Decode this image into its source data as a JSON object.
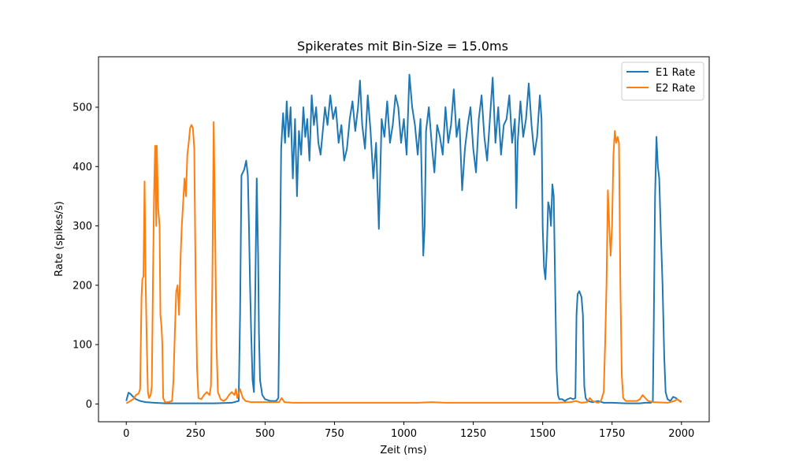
{
  "chart_data": {
    "type": "line",
    "title": "Spikerates mit Bin-Size = 15.0ms",
    "xlabel": "Zeit (ms)",
    "ylabel": "Rate (spikes/s)",
    "xlim": [
      -100,
      2100
    ],
    "ylim": [
      -30,
      585
    ],
    "xticks": [
      0,
      250,
      500,
      750,
      1000,
      1250,
      1500,
      1750,
      2000
    ],
    "yticks": [
      0,
      100,
      200,
      300,
      400,
      500
    ],
    "legend": "top-right",
    "grid": false,
    "series": [
      {
        "name": "E1 Rate",
        "color": "#1f77b4",
        "points": [
          [
            0,
            5
          ],
          [
            8,
            19
          ],
          [
            15,
            17
          ],
          [
            25,
            12
          ],
          [
            35,
            8
          ],
          [
            50,
            5
          ],
          [
            70,
            3
          ],
          [
            100,
            2
          ],
          [
            140,
            1
          ],
          [
            200,
            1
          ],
          [
            260,
            1
          ],
          [
            320,
            1
          ],
          [
            380,
            2
          ],
          [
            405,
            5
          ],
          [
            410,
            150
          ],
          [
            415,
            385
          ],
          [
            425,
            395
          ],
          [
            432,
            410
          ],
          [
            438,
            385
          ],
          [
            442,
            300
          ],
          [
            446,
            200
          ],
          [
            450,
            120
          ],
          [
            455,
            40
          ],
          [
            460,
            20
          ],
          [
            465,
            200
          ],
          [
            470,
            380
          ],
          [
            475,
            250
          ],
          [
            478,
            120
          ],
          [
            482,
            40
          ],
          [
            490,
            15
          ],
          [
            500,
            8
          ],
          [
            520,
            5
          ],
          [
            540,
            5
          ],
          [
            548,
            10
          ],
          [
            555,
            300
          ],
          [
            558,
            430
          ],
          [
            565,
            490
          ],
          [
            572,
            440
          ],
          [
            578,
            510
          ],
          [
            585,
            450
          ],
          [
            592,
            500
          ],
          [
            600,
            380
          ],
          [
            608,
            480
          ],
          [
            615,
            350
          ],
          [
            622,
            460
          ],
          [
            630,
            420
          ],
          [
            638,
            500
          ],
          [
            645,
            450
          ],
          [
            652,
            480
          ],
          [
            660,
            410
          ],
          [
            668,
            520
          ],
          [
            676,
            470
          ],
          [
            684,
            500
          ],
          [
            692,
            440
          ],
          [
            700,
            420
          ],
          [
            708,
            460
          ],
          [
            716,
            500
          ],
          [
            725,
            470
          ],
          [
            735,
            520
          ],
          [
            745,
            480
          ],
          [
            755,
            500
          ],
          [
            765,
            440
          ],
          [
            775,
            470
          ],
          [
            785,
            410
          ],
          [
            795,
            430
          ],
          [
            805,
            480
          ],
          [
            815,
            510
          ],
          [
            825,
            460
          ],
          [
            835,
            500
          ],
          [
            842,
            545
          ],
          [
            850,
            470
          ],
          [
            860,
            430
          ],
          [
            870,
            520
          ],
          [
            880,
            460
          ],
          [
            890,
            380
          ],
          [
            900,
            440
          ],
          [
            910,
            295
          ],
          [
            920,
            480
          ],
          [
            930,
            450
          ],
          [
            940,
            510
          ],
          [
            950,
            440
          ],
          [
            960,
            470
          ],
          [
            970,
            520
          ],
          [
            980,
            500
          ],
          [
            990,
            440
          ],
          [
            1000,
            480
          ],
          [
            1010,
            420
          ],
          [
            1020,
            555
          ],
          [
            1030,
            500
          ],
          [
            1040,
            470
          ],
          [
            1050,
            420
          ],
          [
            1060,
            480
          ],
          [
            1070,
            250
          ],
          [
            1075,
            300
          ],
          [
            1080,
            460
          ],
          [
            1090,
            500
          ],
          [
            1100,
            440
          ],
          [
            1110,
            390
          ],
          [
            1120,
            470
          ],
          [
            1130,
            450
          ],
          [
            1140,
            420
          ],
          [
            1150,
            500
          ],
          [
            1160,
            440
          ],
          [
            1170,
            470
          ],
          [
            1180,
            530
          ],
          [
            1190,
            450
          ],
          [
            1200,
            480
          ],
          [
            1210,
            360
          ],
          [
            1220,
            430
          ],
          [
            1230,
            470
          ],
          [
            1240,
            500
          ],
          [
            1250,
            430
          ],
          [
            1260,
            390
          ],
          [
            1270,
            480
          ],
          [
            1280,
            520
          ],
          [
            1290,
            450
          ],
          [
            1300,
            410
          ],
          [
            1310,
            480
          ],
          [
            1320,
            550
          ],
          [
            1330,
            440
          ],
          [
            1340,
            500
          ],
          [
            1350,
            420
          ],
          [
            1360,
            470
          ],
          [
            1370,
            480
          ],
          [
            1380,
            520
          ],
          [
            1390,
            440
          ],
          [
            1400,
            480
          ],
          [
            1405,
            330
          ],
          [
            1410,
            440
          ],
          [
            1420,
            510
          ],
          [
            1430,
            450
          ],
          [
            1440,
            480
          ],
          [
            1450,
            540
          ],
          [
            1460,
            470
          ],
          [
            1470,
            420
          ],
          [
            1480,
            450
          ],
          [
            1490,
            520
          ],
          [
            1496,
            480
          ],
          [
            1500,
            300
          ],
          [
            1505,
            230
          ],
          [
            1510,
            210
          ],
          [
            1515,
            260
          ],
          [
            1520,
            340
          ],
          [
            1525,
            330
          ],
          [
            1530,
            300
          ],
          [
            1535,
            370
          ],
          [
            1540,
            350
          ],
          [
            1545,
            200
          ],
          [
            1550,
            60
          ],
          [
            1555,
            15
          ],
          [
            1560,
            8
          ],
          [
            1570,
            8
          ],
          [
            1580,
            5
          ],
          [
            1590,
            8
          ],
          [
            1600,
            10
          ],
          [
            1610,
            8
          ],
          [
            1618,
            10
          ],
          [
            1622,
            150
          ],
          [
            1626,
            185
          ],
          [
            1632,
            190
          ],
          [
            1640,
            180
          ],
          [
            1645,
            150
          ],
          [
            1650,
            30
          ],
          [
            1655,
            10
          ],
          [
            1662,
            5
          ],
          [
            1680,
            3
          ],
          [
            1700,
            5
          ],
          [
            1720,
            2
          ],
          [
            1750,
            2
          ],
          [
            1800,
            1
          ],
          [
            1850,
            1
          ],
          [
            1870,
            2
          ],
          [
            1890,
            2
          ],
          [
            1897,
            5
          ],
          [
            1900,
            120
          ],
          [
            1905,
            350
          ],
          [
            1910,
            450
          ],
          [
            1915,
            400
          ],
          [
            1920,
            380
          ],
          [
            1925,
            300
          ],
          [
            1932,
            200
          ],
          [
            1938,
            80
          ],
          [
            1943,
            20
          ],
          [
            1950,
            8
          ],
          [
            1960,
            5
          ],
          [
            1970,
            12
          ],
          [
            1980,
            10
          ],
          [
            1990,
            6
          ],
          [
            2000,
            4
          ]
        ]
      },
      {
        "name": "E2 Rate",
        "color": "#ff7f0e",
        "points": [
          [
            0,
            1
          ],
          [
            15,
            5
          ],
          [
            25,
            8
          ],
          [
            35,
            15
          ],
          [
            45,
            18
          ],
          [
            50,
            25
          ],
          [
            55,
            180
          ],
          [
            58,
            210
          ],
          [
            62,
            215
          ],
          [
            66,
            375
          ],
          [
            70,
            200
          ],
          [
            74,
            100
          ],
          [
            78,
            20
          ],
          [
            82,
            10
          ],
          [
            88,
            15
          ],
          [
            92,
            30
          ],
          [
            96,
            200
          ],
          [
            100,
            350
          ],
          [
            104,
            435
          ],
          [
            108,
            300
          ],
          [
            110,
            435
          ],
          [
            115,
            330
          ],
          [
            120,
            300
          ],
          [
            123,
            150
          ],
          [
            127,
            130
          ],
          [
            130,
            100
          ],
          [
            133,
            10
          ],
          [
            140,
            3
          ],
          [
            150,
            3
          ],
          [
            165,
            5
          ],
          [
            170,
            40
          ],
          [
            175,
            120
          ],
          [
            180,
            190
          ],
          [
            185,
            200
          ],
          [
            190,
            150
          ],
          [
            196,
            250
          ],
          [
            200,
            300
          ],
          [
            205,
            340
          ],
          [
            210,
            380
          ],
          [
            215,
            350
          ],
          [
            220,
            420
          ],
          [
            225,
            440
          ],
          [
            230,
            465
          ],
          [
            235,
            470
          ],
          [
            240,
            465
          ],
          [
            245,
            430
          ],
          [
            250,
            200
          ],
          [
            255,
            60
          ],
          [
            260,
            10
          ],
          [
            270,
            8
          ],
          [
            280,
            15
          ],
          [
            290,
            20
          ],
          [
            300,
            15
          ],
          [
            305,
            30
          ],
          [
            310,
            200
          ],
          [
            315,
            475
          ],
          [
            320,
            300
          ],
          [
            325,
            100
          ],
          [
            330,
            20
          ],
          [
            340,
            8
          ],
          [
            350,
            5
          ],
          [
            360,
            8
          ],
          [
            370,
            15
          ],
          [
            380,
            20
          ],
          [
            390,
            15
          ],
          [
            395,
            25
          ],
          [
            400,
            10
          ],
          [
            410,
            25
          ],
          [
            420,
            10
          ],
          [
            430,
            5
          ],
          [
            450,
            3
          ],
          [
            500,
            3
          ],
          [
            550,
            3
          ],
          [
            560,
            10
          ],
          [
            570,
            3
          ],
          [
            600,
            2
          ],
          [
            650,
            2
          ],
          [
            700,
            2
          ],
          [
            750,
            2
          ],
          [
            800,
            2
          ],
          [
            850,
            2
          ],
          [
            900,
            2
          ],
          [
            950,
            2
          ],
          [
            1000,
            2
          ],
          [
            1050,
            2
          ],
          [
            1100,
            3
          ],
          [
            1150,
            2
          ],
          [
            1200,
            2
          ],
          [
            1250,
            2
          ],
          [
            1300,
            2
          ],
          [
            1350,
            2
          ],
          [
            1400,
            2
          ],
          [
            1450,
            2
          ],
          [
            1500,
            2
          ],
          [
            1550,
            2
          ],
          [
            1600,
            3
          ],
          [
            1620,
            5
          ],
          [
            1640,
            2
          ],
          [
            1660,
            3
          ],
          [
            1670,
            10
          ],
          [
            1680,
            5
          ],
          [
            1700,
            2
          ],
          [
            1710,
            5
          ],
          [
            1720,
            20
          ],
          [
            1725,
            100
          ],
          [
            1730,
            200
          ],
          [
            1735,
            360
          ],
          [
            1740,
            300
          ],
          [
            1745,
            250
          ],
          [
            1750,
            300
          ],
          [
            1755,
            420
          ],
          [
            1760,
            460
          ],
          [
            1765,
            440
          ],
          [
            1770,
            450
          ],
          [
            1775,
            440
          ],
          [
            1780,
            200
          ],
          [
            1785,
            50
          ],
          [
            1790,
            10
          ],
          [
            1800,
            5
          ],
          [
            1820,
            5
          ],
          [
            1840,
            5
          ],
          [
            1850,
            8
          ],
          [
            1860,
            15
          ],
          [
            1870,
            10
          ],
          [
            1880,
            5
          ],
          [
            1900,
            3
          ],
          [
            1950,
            2
          ],
          [
            1975,
            5
          ],
          [
            1985,
            8
          ],
          [
            1995,
            4
          ],
          [
            2000,
            3
          ]
        ]
      }
    ]
  }
}
